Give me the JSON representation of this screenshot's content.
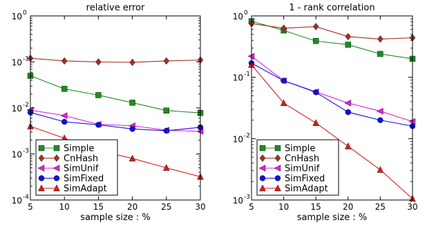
{
  "chart_data": [
    {
      "type": "line",
      "title": "relative error",
      "xlabel": "sample size : %",
      "ylabel": "",
      "xlim": [
        5,
        30
      ],
      "ylim": [
        0.0001,
        1
      ],
      "yscale": "log",
      "grid": false,
      "legend_position": "lower-left",
      "x": [
        5,
        10,
        15,
        20,
        25,
        30
      ],
      "x_ticks": [
        "5",
        "10",
        "15",
        "20",
        "25",
        "30"
      ],
      "y_ticks": [
        {
          "value": 1,
          "base": "10",
          "exp": "0"
        },
        {
          "value": 0.1,
          "base": "10",
          "exp": "-1"
        },
        {
          "value": 0.01,
          "base": "10",
          "exp": "-2"
        },
        {
          "value": 0.001,
          "base": "10",
          "exp": "-3"
        },
        {
          "value": 0.0001,
          "base": "10",
          "exp": "-4"
        }
      ],
      "series": [
        {
          "name": "Simple",
          "color": "#228b22",
          "marker": "square",
          "values": [
            0.05,
            0.026,
            0.019,
            0.013,
            0.0088,
            0.0078
          ]
        },
        {
          "name": "CnHash",
          "color": "#a0302a",
          "marker": "diamond",
          "values": [
            0.12,
            0.105,
            0.1,
            0.098,
            0.105,
            0.11
          ]
        },
        {
          "name": "SimUnif",
          "color": "#dd22dd",
          "marker": "triangle-left",
          "values": [
            0.009,
            0.0068,
            0.0044,
            0.0041,
            0.0033,
            0.0031
          ]
        },
        {
          "name": "SimFixed",
          "color": "#1010dd",
          "marker": "circle",
          "values": [
            0.008,
            0.005,
            0.0043,
            0.0035,
            0.0032,
            0.0038
          ]
        },
        {
          "name": "SimAdapt",
          "color": "#dd1a1a",
          "marker": "triangle-up",
          "values": [
            0.004,
            0.0022,
            0.0012,
            0.0008,
            0.0005,
            0.00032
          ]
        }
      ]
    },
    {
      "type": "line",
      "title": "1 - rank correlation",
      "xlabel": "sample size : %",
      "ylabel": "",
      "xlim": [
        5,
        30
      ],
      "ylim": [
        0.001,
        1
      ],
      "yscale": "log",
      "grid": false,
      "legend_position": "lower-left",
      "x": [
        5,
        10,
        15,
        20,
        25,
        30
      ],
      "x_ticks": [
        "5",
        "10",
        "15",
        "20",
        "25",
        "30"
      ],
      "y_ticks": [
        {
          "value": 1,
          "base": "10",
          "exp": "0"
        },
        {
          "value": 0.1,
          "base": "10",
          "exp": "-1"
        },
        {
          "value": 0.01,
          "base": "10",
          "exp": "-2"
        },
        {
          "value": 0.001,
          "base": "10",
          "exp": "-3"
        }
      ],
      "series": [
        {
          "name": "Simple",
          "color": "#228b22",
          "marker": "square",
          "values": [
            0.82,
            0.58,
            0.39,
            0.34,
            0.24,
            0.2
          ]
        },
        {
          "name": "CnHash",
          "color": "#a0302a",
          "marker": "diamond",
          "values": [
            0.75,
            0.63,
            0.67,
            0.46,
            0.42,
            0.44
          ]
        },
        {
          "name": "SimUnif",
          "color": "#dd22dd",
          "marker": "triangle-left",
          "values": [
            0.22,
            0.088,
            0.058,
            0.038,
            0.028,
            0.019
          ]
        },
        {
          "name": "SimFixed",
          "color": "#1010dd",
          "marker": "circle",
          "values": [
            0.17,
            0.088,
            0.057,
            0.027,
            0.02,
            0.016
          ]
        },
        {
          "name": "SimAdapt",
          "color": "#dd1a1a",
          "marker": "triangle-up",
          "values": [
            0.16,
            0.038,
            0.018,
            0.0075,
            0.0031,
            0.00105
          ]
        }
      ]
    }
  ]
}
